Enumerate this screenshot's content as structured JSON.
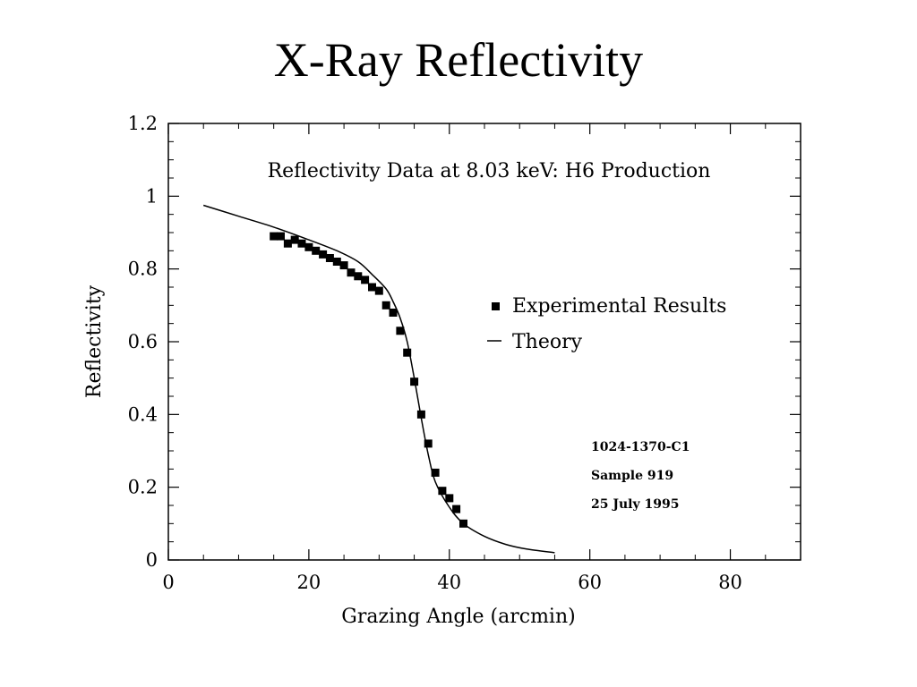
{
  "slide": {
    "title": "X-Ray Reflectivity"
  },
  "chart_data": {
    "type": "scatter",
    "title": "Reflectivity Data at 8.03 keV: H6 Production",
    "xlabel": "Grazing Angle (arcmin)",
    "ylabel": "Reflectivity",
    "xlim": [
      0,
      90
    ],
    "ylim": [
      0,
      1.2
    ],
    "x_ticks": [
      0,
      20,
      40,
      60,
      80
    ],
    "x_tick_labels": [
      "0",
      "20",
      "40",
      "60",
      "80"
    ],
    "y_ticks": [
      0,
      0.2,
      0.4,
      0.6,
      0.8,
      1,
      1.2
    ],
    "y_tick_labels": [
      "0",
      "0.2",
      "0.4",
      "0.6",
      "0.8",
      "1",
      "1.2"
    ],
    "grid": false,
    "legend_position": "right",
    "series": [
      {
        "name": "Experimental Results",
        "kind": "markers",
        "x": [
          15,
          16,
          17,
          18,
          19,
          20,
          21,
          22,
          23,
          24,
          25,
          26,
          27,
          28,
          29,
          30,
          31,
          32,
          33,
          34,
          35,
          36,
          37,
          38,
          39,
          40,
          41,
          42
        ],
        "y": [
          0.89,
          0.89,
          0.87,
          0.88,
          0.87,
          0.86,
          0.85,
          0.84,
          0.83,
          0.82,
          0.81,
          0.79,
          0.78,
          0.77,
          0.75,
          0.74,
          0.7,
          0.68,
          0.63,
          0.57,
          0.49,
          0.4,
          0.32,
          0.24,
          0.19,
          0.17,
          0.14,
          0.1
        ]
      },
      {
        "name": "Theory",
        "kind": "line",
        "x": [
          5,
          10,
          15,
          20,
          24,
          27,
          29,
          31,
          32,
          33,
          34,
          35,
          36,
          37,
          38,
          40,
          42,
          45,
          48,
          51,
          55
        ],
        "y": [
          0.975,
          0.945,
          0.915,
          0.88,
          0.85,
          0.82,
          0.785,
          0.745,
          0.71,
          0.665,
          0.6,
          0.5,
          0.39,
          0.29,
          0.215,
          0.145,
          0.1,
          0.065,
          0.043,
          0.03,
          0.02
        ]
      }
    ],
    "annotations": [
      "1024-1370-C1",
      "Sample 919",
      "25 July 1995"
    ]
  }
}
